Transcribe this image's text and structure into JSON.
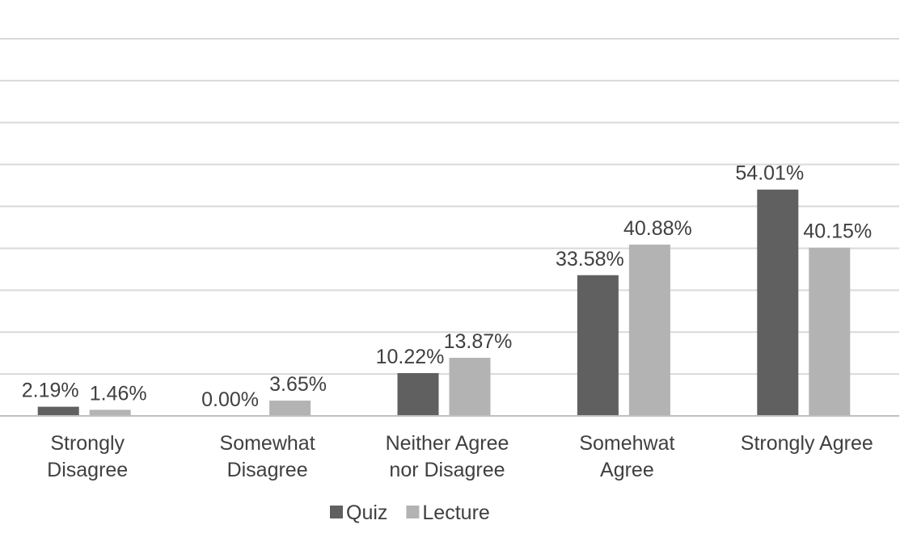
{
  "chart_data": {
    "type": "bar",
    "title": "",
    "xlabel": "",
    "ylabel": "",
    "ylim": [
      0,
      90
    ],
    "grid": true,
    "legend_position": "bottom",
    "categories": [
      [
        "Strongly",
        "Disagree"
      ],
      [
        "Somewhat",
        "Disagree"
      ],
      [
        "Neither Agree",
        "nor Disagree"
      ],
      [
        "Somehwat",
        "Agree"
      ],
      [
        "Strongly Agree"
      ]
    ],
    "series": [
      {
        "name": "Quiz",
        "color": "#606060",
        "values": [
          2.19,
          0.0,
          10.22,
          33.58,
          54.01
        ],
        "labels": [
          "2.19%",
          "0.00%",
          "10.22%",
          "33.58%",
          "54.01%"
        ]
      },
      {
        "name": "Lecture",
        "color": "#b3b3b3",
        "values": [
          1.46,
          3.65,
          13.87,
          40.88,
          40.15
        ],
        "labels": [
          "1.46%",
          "3.65%",
          "13.87%",
          "40.88%",
          "40.15%"
        ]
      }
    ]
  }
}
